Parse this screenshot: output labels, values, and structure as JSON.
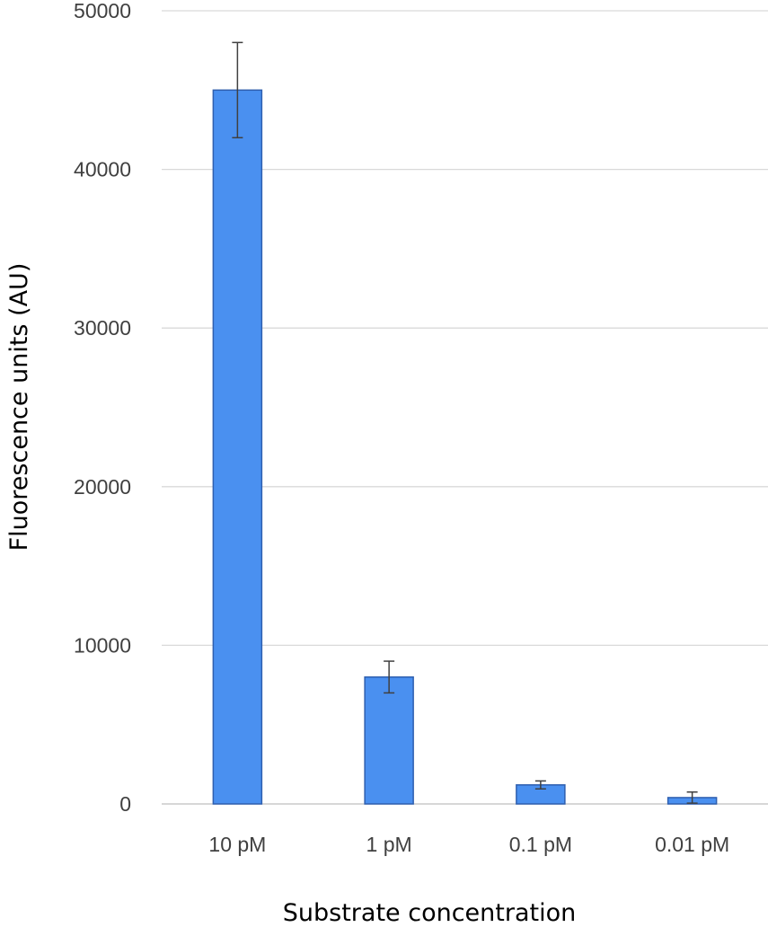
{
  "chart_data": {
    "type": "bar",
    "categories": [
      "10 pM",
      "1 pM",
      "0.1 pM",
      "0.01 pM"
    ],
    "values": [
      45000,
      8000,
      1200,
      400
    ],
    "errors": [
      3000,
      1000,
      250,
      350
    ],
    "xlabel": "Substrate concentration",
    "ylabel": "Fluorescence units (AU)",
    "ylim": [
      0,
      50000
    ],
    "yticks": [
      "0",
      "10000",
      "20000",
      "30000",
      "40000",
      "50000"
    ],
    "ytick_values": [
      0,
      10000,
      20000,
      30000,
      40000,
      50000
    ],
    "grid": true,
    "legend": "none",
    "colors": {
      "bar_fill": "#4a90f0",
      "bar_stroke": "#2f5faf",
      "grid": "#d9d9d9",
      "error_bar": "#404040"
    }
  }
}
